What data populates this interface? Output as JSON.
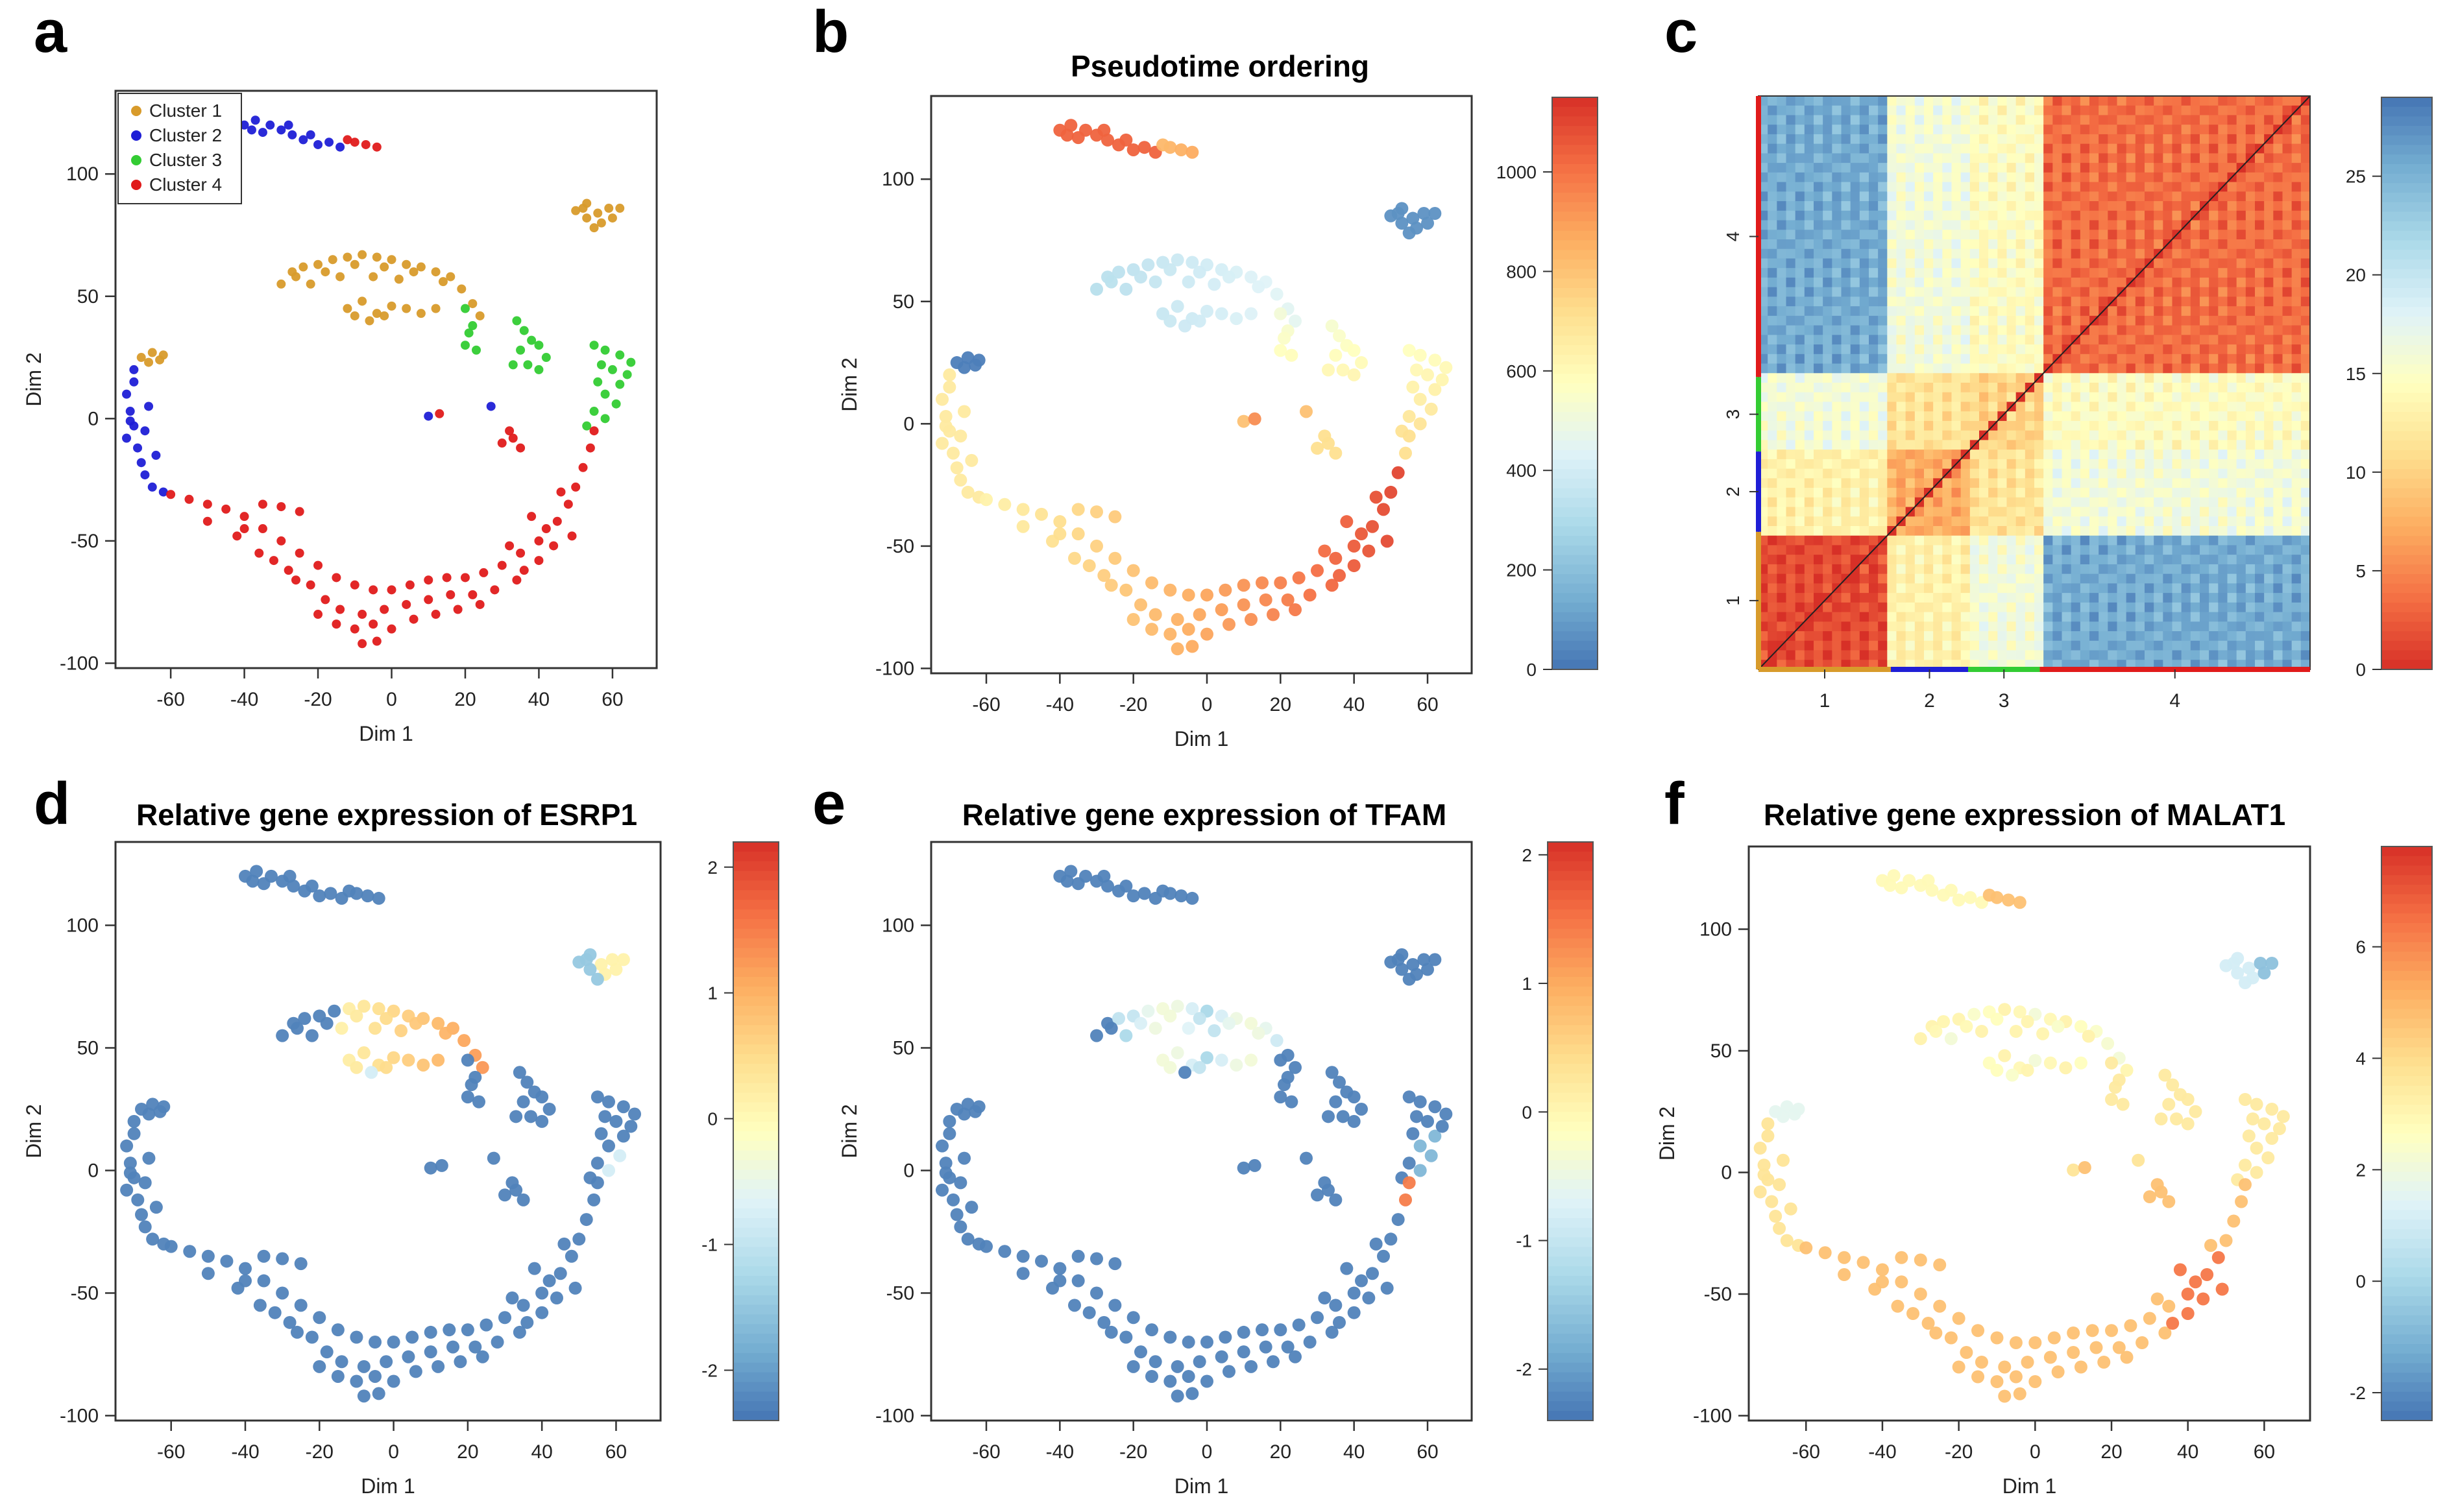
{
  "colors": {
    "cluster1": "#D89B2B",
    "cluster2": "#1F1FD6",
    "cluster3": "#33CC33",
    "cluster4": "#E01B1B",
    "heat_low": "#4575B4",
    "heat_high": "#D73027",
    "axis": "#555555"
  },
  "chart_data": [
    {
      "id": "a",
      "panel_letter": "a",
      "type": "scatter",
      "title": "",
      "xlabel": "Dim 1",
      "ylabel": "Dim 2",
      "xlim": [
        -75,
        72
      ],
      "ylim": [
        -102,
        134
      ],
      "xticks": [
        -60,
        -40,
        -20,
        0,
        20,
        40,
        60
      ],
      "yticks": [
        -100,
        -50,
        0,
        50,
        100
      ],
      "legend": {
        "position": "top-left",
        "entries": [
          "Cluster 1",
          "Cluster 2",
          "Cluster 3",
          "Cluster 4"
        ]
      },
      "color_mode": "cluster"
    },
    {
      "id": "b",
      "panel_letter": "b",
      "type": "scatter",
      "title": "Pseudotime ordering",
      "xlabel": "Dim 1",
      "ylabel": "Dim 2",
      "xlim": [
        -75,
        72
      ],
      "ylim": [
        -102,
        134
      ],
      "xticks": [
        -60,
        -40,
        -20,
        0,
        20,
        40,
        60
      ],
      "yticks": [
        -100,
        -50,
        0,
        50,
        100
      ],
      "color_mode": "pseudotime",
      "colorbar": {
        "min": 0,
        "max": 1150,
        "ticks": [
          0,
          200,
          400,
          600,
          800,
          1000
        ],
        "reversed": false
      }
    },
    {
      "id": "c",
      "panel_letter": "c",
      "type": "heatmap",
      "title": "",
      "xticks": [
        "1",
        "2",
        "3",
        "4"
      ],
      "yticks": [
        "1",
        "2",
        "3",
        "4"
      ],
      "cluster_bounds": [
        0,
        0.24,
        0.38,
        0.51,
        1.0
      ],
      "colorbar": {
        "min": 0,
        "max": 29,
        "ticks": [
          0,
          5,
          10,
          15,
          20,
          25
        ],
        "reversed": true
      }
    },
    {
      "id": "d",
      "panel_letter": "d",
      "type": "scatter",
      "title": "Relative gene expression of ESRP1",
      "xlabel": "Dim 1",
      "ylabel": "Dim 2",
      "xlim": [
        -75,
        72
      ],
      "ylim": [
        -102,
        134
      ],
      "xticks": [
        -60,
        -40,
        -20,
        0,
        20,
        40,
        60
      ],
      "yticks": [
        -100,
        -50,
        0,
        50,
        100
      ],
      "color_mode": "esrp1",
      "colorbar": {
        "min": -2.4,
        "max": 2.2,
        "ticks": [
          -2,
          -1,
          0,
          1,
          2
        ],
        "reversed": false
      }
    },
    {
      "id": "e",
      "panel_letter": "e",
      "type": "scatter",
      "title": "Relative gene expression of TFAM",
      "xlabel": "Dim 1",
      "ylabel": "Dim 2",
      "xlim": [
        -75,
        72
      ],
      "ylim": [
        -102,
        134
      ],
      "xticks": [
        -60,
        -40,
        -20,
        0,
        20,
        40,
        60
      ],
      "yticks": [
        -100,
        -50,
        0,
        50,
        100
      ],
      "color_mode": "tfam",
      "colorbar": {
        "min": -2.4,
        "max": 2.1,
        "ticks": [
          -2,
          -1,
          0,
          1,
          2
        ],
        "reversed": false
      }
    },
    {
      "id": "f",
      "panel_letter": "f",
      "type": "scatter",
      "title": "Relative gene expression of MALAT1",
      "xlabel": "Dim 1",
      "ylabel": "Dim 2",
      "xlim": [
        -75,
        72
      ],
      "ylim": [
        -102,
        134
      ],
      "xticks": [
        -60,
        -40,
        -20,
        0,
        20,
        40,
        60
      ],
      "yticks": [
        -100,
        -50,
        0,
        50,
        100
      ],
      "color_mode": "malat1",
      "colorbar": {
        "min": -2.5,
        "max": 7.8,
        "ticks": [
          -2,
          0,
          2,
          4,
          6
        ],
        "reversed": false
      }
    }
  ],
  "scatter_data": {
    "note": "Approximate cell positions (Dim 1, Dim 2, cluster) read off panel a; shared by panels a, b, d, e, f",
    "points": [
      [
        -40,
        120,
        2
      ],
      [
        -37,
        122,
        2
      ],
      [
        -33,
        120,
        2
      ],
      [
        -30,
        118,
        2
      ],
      [
        -27,
        116,
        2
      ],
      [
        -24,
        114,
        2
      ],
      [
        -20,
        112,
        2
      ],
      [
        -17,
        113,
        2
      ],
      [
        -14,
        111,
        2
      ],
      [
        -10,
        113,
        4
      ],
      [
        -7,
        112,
        4
      ],
      [
        -4,
        111,
        4
      ],
      [
        -38,
        118,
        2
      ],
      [
        -35,
        117,
        2
      ],
      [
        -28,
        120,
        2
      ],
      [
        -22,
        116,
        2
      ],
      [
        -12,
        114,
        4
      ],
      [
        50,
        85,
        1
      ],
      [
        53,
        88,
        1
      ],
      [
        56,
        84,
        1
      ],
      [
        59,
        86,
        1
      ],
      [
        57,
        80,
        1
      ],
      [
        53,
        82,
        1
      ],
      [
        60,
        82,
        1
      ],
      [
        55,
        78,
        1
      ],
      [
        62,
        86,
        1
      ],
      [
        52,
        86,
        1
      ],
      [
        -30,
        55,
        1
      ],
      [
        -27,
        60,
        1
      ],
      [
        -24,
        62,
        1
      ],
      [
        -20,
        63,
        1
      ],
      [
        -16,
        65,
        1
      ],
      [
        -12,
        66,
        1
      ],
      [
        -8,
        67,
        1
      ],
      [
        -4,
        66,
        1
      ],
      [
        0,
        65,
        1
      ],
      [
        4,
        63,
        1
      ],
      [
        8,
        62,
        1
      ],
      [
        12,
        60,
        1
      ],
      [
        16,
        58,
        1
      ],
      [
        19,
        53,
        1
      ],
      [
        22,
        47,
        1
      ],
      [
        24,
        42,
        1
      ],
      [
        -26,
        58,
        1
      ],
      [
        -18,
        60,
        1
      ],
      [
        -10,
        63,
        1
      ],
      [
        -2,
        62,
        1
      ],
      [
        6,
        60,
        1
      ],
      [
        14,
        56,
        1
      ],
      [
        -22,
        55,
        1
      ],
      [
        -14,
        58,
        1
      ],
      [
        -5,
        58,
        1
      ],
      [
        2,
        57,
        1
      ],
      [
        -12,
        45,
        1
      ],
      [
        -8,
        48,
        1
      ],
      [
        -4,
        43,
        1
      ],
      [
        0,
        46,
        1
      ],
      [
        -6,
        40,
        1
      ],
      [
        -2,
        42,
        1
      ],
      [
        4,
        45,
        1
      ],
      [
        8,
        43,
        1
      ],
      [
        -10,
        42,
        1
      ],
      [
        12,
        45,
        1
      ],
      [
        -68,
        25,
        1
      ],
      [
        -65,
        27,
        1
      ],
      [
        -62,
        26,
        1
      ],
      [
        -66,
        23,
        1
      ],
      [
        -63,
        24,
        1
      ],
      [
        20,
        45,
        3
      ],
      [
        22,
        38,
        3
      ],
      [
        20,
        30,
        3
      ],
      [
        23,
        28,
        3
      ],
      [
        21,
        35,
        3
      ],
      [
        34,
        40,
        3
      ],
      [
        36,
        36,
        3
      ],
      [
        38,
        32,
        3
      ],
      [
        35,
        28,
        3
      ],
      [
        40,
        30,
        3
      ],
      [
        42,
        25,
        3
      ],
      [
        37,
        22,
        3
      ],
      [
        33,
        22,
        3
      ],
      [
        40,
        20,
        3
      ],
      [
        55,
        30,
        3
      ],
      [
        58,
        28,
        3
      ],
      [
        62,
        26,
        3
      ],
      [
        65,
        23,
        3
      ],
      [
        60,
        20,
        3
      ],
      [
        56,
        15,
        3
      ],
      [
        58,
        10,
        3
      ],
      [
        61,
        6,
        3
      ],
      [
        55,
        3,
        3
      ],
      [
        58,
        0,
        3
      ],
      [
        53,
        -3,
        3
      ],
      [
        62,
        14,
        3
      ],
      [
        64,
        18,
        3
      ],
      [
        57,
        22,
        3
      ],
      [
        -70,
        15,
        2
      ],
      [
        -72,
        10,
        2
      ],
      [
        -71,
        3,
        2
      ],
      [
        -70,
        -3,
        2
      ],
      [
        -72,
        -8,
        2
      ],
      [
        -69,
        -12,
        2
      ],
      [
        -68,
        -18,
        2
      ],
      [
        -67,
        -23,
        2
      ],
      [
        -65,
        -28,
        2
      ],
      [
        -62,
        -30,
        2
      ],
      [
        -70,
        20,
        2
      ],
      [
        -66,
        5,
        2
      ],
      [
        -67,
        -5,
        2
      ],
      [
        -64,
        -15,
        2
      ],
      [
        -71,
        -1,
        2
      ],
      [
        10,
        1,
        2
      ],
      [
        27,
        5,
        2
      ],
      [
        -60,
        -31,
        4
      ],
      [
        -55,
        -33,
        4
      ],
      [
        -50,
        -35,
        4
      ],
      [
        -45,
        -37,
        4
      ],
      [
        -40,
        -40,
        4
      ],
      [
        -35,
        -45,
        4
      ],
      [
        -30,
        -50,
        4
      ],
      [
        -25,
        -55,
        4
      ],
      [
        -20,
        -60,
        4
      ],
      [
        -15,
        -65,
        4
      ],
      [
        -10,
        -68,
        4
      ],
      [
        -5,
        -70,
        4
      ],
      [
        0,
        -70,
        4
      ],
      [
        5,
        -68,
        4
      ],
      [
        10,
        -66,
        4
      ],
      [
        15,
        -65,
        4
      ],
      [
        20,
        -65,
        4
      ],
      [
        25,
        -63,
        4
      ],
      [
        30,
        -60,
        4
      ],
      [
        35,
        -55,
        4
      ],
      [
        40,
        -50,
        4
      ],
      [
        45,
        -42,
        4
      ],
      [
        48,
        -35,
        4
      ],
      [
        50,
        -28,
        4
      ],
      [
        52,
        -20,
        4
      ],
      [
        54,
        -12,
        4
      ],
      [
        55,
        -5,
        4
      ],
      [
        -50,
        -42,
        4
      ],
      [
        -42,
        -48,
        4
      ],
      [
        -36,
        -55,
        4
      ],
      [
        -28,
        -62,
        4
      ],
      [
        -22,
        -68,
        4
      ],
      [
        -18,
        -74,
        4
      ],
      [
        -14,
        -78,
        4
      ],
      [
        -8,
        -80,
        4
      ],
      [
        -2,
        -78,
        4
      ],
      [
        4,
        -76,
        4
      ],
      [
        10,
        -74,
        4
      ],
      [
        16,
        -72,
        4
      ],
      [
        22,
        -72,
        4
      ],
      [
        28,
        -70,
        4
      ],
      [
        34,
        -66,
        4
      ],
      [
        40,
        -58,
        4
      ],
      [
        44,
        -52,
        4
      ],
      [
        -20,
        -80,
        4
      ],
      [
        -15,
        -84,
        4
      ],
      [
        -10,
        -86,
        4
      ],
      [
        -5,
        -84,
        4
      ],
      [
        0,
        -86,
        4
      ],
      [
        6,
        -82,
        4
      ],
      [
        12,
        -80,
        4
      ],
      [
        18,
        -78,
        4
      ],
      [
        24,
        -76,
        4
      ],
      [
        -8,
        -92,
        4
      ],
      [
        -4,
        -91,
        4
      ],
      [
        -35,
        -35,
        4
      ],
      [
        -30,
        -36,
        4
      ],
      [
        -25,
        -38,
        4
      ],
      [
        -40,
        -45,
        4
      ],
      [
        -32,
        -58,
        4
      ],
      [
        -26,
        -66,
        4
      ],
      [
        36,
        -62,
        4
      ],
      [
        42,
        -45,
        4
      ],
      [
        46,
        -30,
        4
      ],
      [
        49,
        -48,
        4
      ],
      [
        38,
        -40,
        4
      ],
      [
        32,
        -52,
        4
      ],
      [
        30,
        -10,
        4
      ],
      [
        33,
        -8,
        4
      ],
      [
        35,
        -12,
        4
      ],
      [
        32,
        -5,
        4
      ],
      [
        13,
        2,
        4
      ]
    ]
  }
}
